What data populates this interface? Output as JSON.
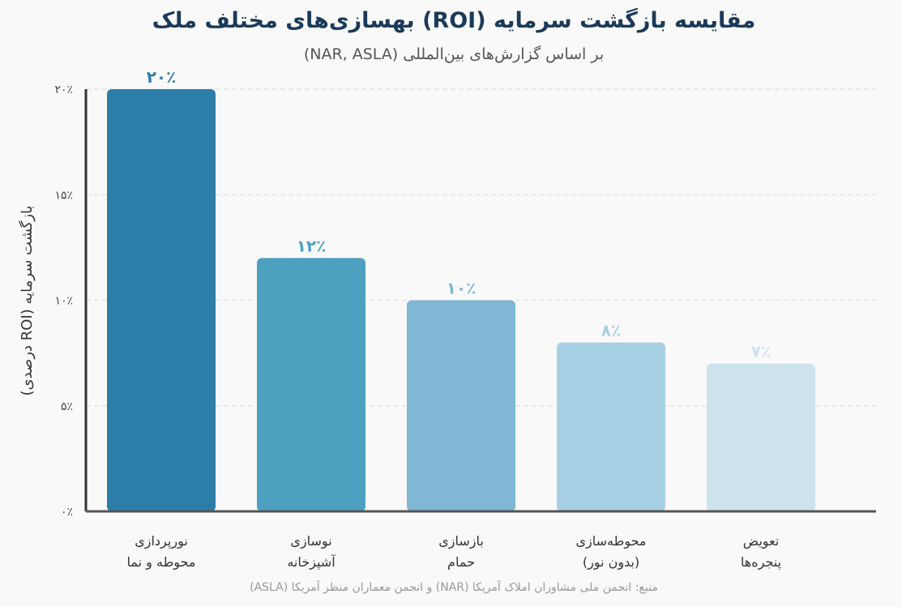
{
  "chart_data": {
    "type": "bar",
    "title": "بهسازی‌های مختلف ملک (ROI) مقایسه بازگشت سرمایه",
    "subtitle": "(NAR, ASLA) بر اساس گزارش‌های بین‌المللی",
    "ylabel": "(درصدی ROI) بازگشت سرمایه",
    "categories": [
      [
        "نورپردازی",
        "محوطه و نما"
      ],
      [
        "نوسازی",
        "آشپزخانه"
      ],
      [
        "بازسازی",
        "حمام"
      ],
      [
        "محوطه‌سازی",
        "(بدون نور)"
      ],
      [
        "تعویض",
        "پنجره‌ها"
      ]
    ],
    "values": [
      20,
      12,
      10,
      8,
      7
    ],
    "value_labels": [
      "۲۰٪",
      "۱۲٪",
      "۱۰٪",
      "۸٪",
      "۷٪"
    ],
    "colors": [
      "#2c7ea8",
      "#4ea0c1",
      "#7fb7d5",
      "#a8d0e4",
      "#cce3ee"
    ],
    "label_colors": [
      "#2c7ea8",
      "#4ea0c1",
      "#7fb7d5",
      "#a8d0e4",
      "#cce3ee"
    ],
    "ylim": [
      0,
      20
    ],
    "yticks": [
      0,
      5,
      10,
      15,
      20
    ],
    "ytick_labels": [
      "۰٪",
      "۵٪",
      "۱۰٪",
      "۱۵٪",
      "۲۰٪"
    ],
    "grid": true,
    "source": "(ASLA) و انجمن معماران منظر آمریکا (NAR) منبع: انجمن ملی مشاوران املاک آمریکا"
  }
}
